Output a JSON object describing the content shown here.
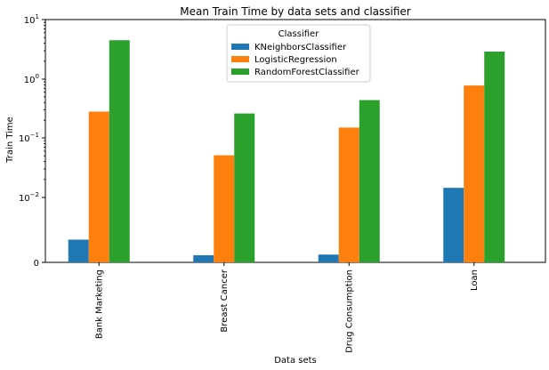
{
  "chart_data": {
    "type": "bar",
    "title": "Mean Train Time by data sets and classifier",
    "xlabel": "Data sets",
    "ylabel": "Train Time",
    "yscale": "symlog",
    "ylim": [
      0,
      10
    ],
    "y_ticks": [
      {
        "value": 0,
        "base": "0",
        "exp": ""
      },
      {
        "value": 0.01,
        "base": "10",
        "exp": "−2"
      },
      {
        "value": 0.1,
        "base": "10",
        "exp": "−1"
      },
      {
        "value": 1,
        "base": "10",
        "exp": "0"
      },
      {
        "value": 10,
        "base": "10",
        "exp": "1"
      }
    ],
    "categories": [
      "Bank Marketing",
      "Breast Cancer",
      "Drug Consumption",
      "Loan"
    ],
    "series": [
      {
        "name": "KNeighborsClassifier",
        "color": "#1f77b4",
        "values": [
          0.0035,
          0.0011,
          0.0012,
          0.0145
        ]
      },
      {
        "name": "LogisticRegression",
        "color": "#ff7f0e",
        "values": [
          0.28,
          0.051,
          0.15,
          0.78
        ]
      },
      {
        "name": "RandomForestClassifier",
        "color": "#2ca02c",
        "values": [
          4.5,
          0.26,
          0.44,
          2.9
        ]
      }
    ],
    "legend": {
      "title": "Classifier",
      "placement": "upper-center"
    },
    "grid": false
  }
}
